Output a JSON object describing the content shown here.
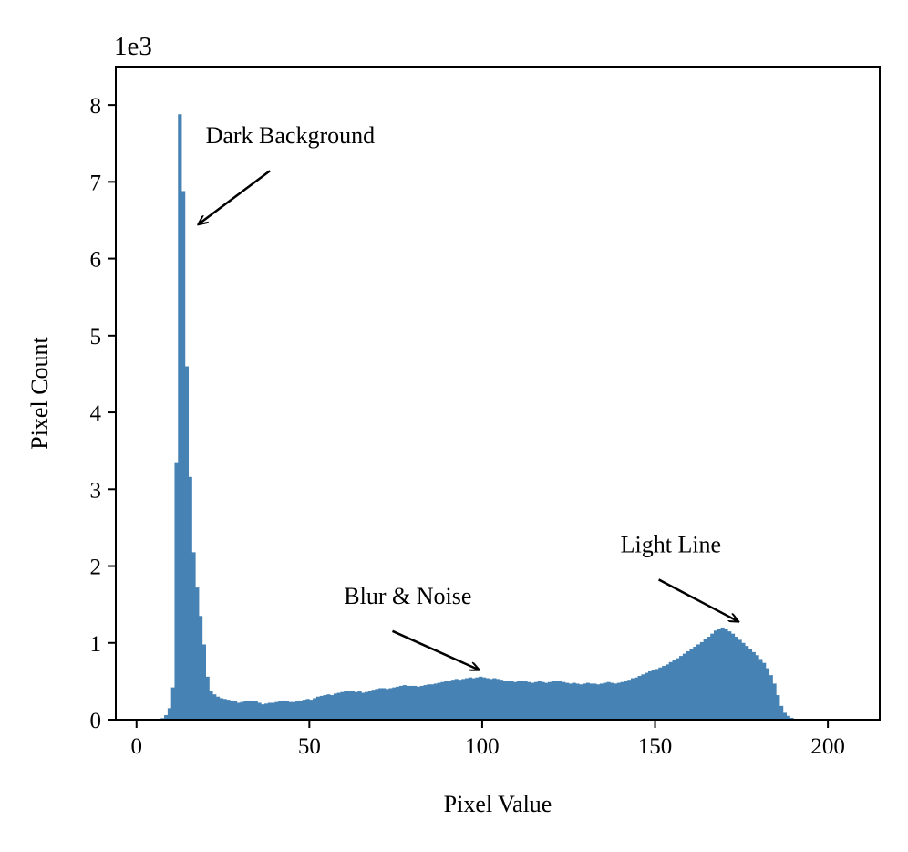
{
  "chart_data": {
    "type": "bar",
    "title": "",
    "xlabel": "Pixel Value",
    "ylabel": "Pixel Count",
    "y_scale_label": "1e3",
    "xlim": [
      -6,
      215
    ],
    "ylim": [
      0,
      8500
    ],
    "xticks": [
      0,
      50,
      100,
      150,
      200
    ],
    "xtick_labels": [
      "0",
      "50",
      "100",
      "150",
      "200"
    ],
    "yticks": [
      0,
      1000,
      2000,
      3000,
      4000,
      5000,
      6000,
      7000,
      8000
    ],
    "ytick_labels": [
      "0",
      "1",
      "2",
      "3",
      "4",
      "5",
      "6",
      "7",
      "8"
    ],
    "grid": false,
    "bar_color": "#4682B4",
    "bin_width": 1,
    "bin_start": 0,
    "values": [
      0,
      0,
      0,
      0,
      0,
      5,
      10,
      20,
      60,
      150,
      420,
      3340,
      7880,
      6880,
      4600,
      3160,
      2180,
      1720,
      1350,
      980,
      560,
      380,
      330,
      300,
      280,
      270,
      260,
      250,
      240,
      220,
      230,
      240,
      250,
      240,
      240,
      220,
      200,
      210,
      220,
      220,
      230,
      240,
      250,
      240,
      230,
      230,
      240,
      250,
      260,
      270,
      260,
      280,
      300,
      310,
      320,
      330,
      320,
      340,
      350,
      360,
      370,
      380,
      370,
      360,
      370,
      350,
      360,
      370,
      390,
      400,
      410,
      410,
      400,
      410,
      420,
      430,
      440,
      450,
      440,
      440,
      440,
      430,
      440,
      450,
      460,
      460,
      470,
      480,
      490,
      500,
      510,
      520,
      530,
      520,
      530,
      540,
      550,
      540,
      550,
      560,
      550,
      540,
      530,
      540,
      530,
      520,
      510,
      510,
      500,
      490,
      500,
      510,
      500,
      490,
      480,
      490,
      500,
      490,
      480,
      490,
      500,
      510,
      500,
      490,
      480,
      470,
      480,
      470,
      460,
      470,
      480,
      470,
      470,
      460,
      470,
      480,
      490,
      480,
      470,
      480,
      490,
      510,
      520,
      540,
      550,
      570,
      590,
      610,
      630,
      650,
      660,
      680,
      700,
      720,
      750,
      780,
      800,
      830,
      860,
      890,
      920,
      950,
      980,
      1010,
      1050,
      1080,
      1120,
      1160,
      1180,
      1200,
      1180,
      1150,
      1120,
      1080,
      1040,
      1000,
      960,
      920,
      880,
      840,
      790,
      740,
      670,
      580,
      470,
      320,
      180,
      90,
      50,
      25,
      12,
      6,
      3,
      0,
      0
    ],
    "annotations": [
      {
        "text": "Dark Background",
        "text_x": 20,
        "text_y": 7500,
        "arrow_to_x": 18,
        "arrow_to_y": 6450
      },
      {
        "text": "Blur & Noise",
        "text_x": 60,
        "text_y": 1510,
        "arrow_to_x": 99,
        "arrow_to_y": 650
      },
      {
        "text": "Light Line",
        "text_x": 140,
        "text_y": 2180,
        "arrow_to_x": 174,
        "arrow_to_y": 1280
      }
    ]
  }
}
